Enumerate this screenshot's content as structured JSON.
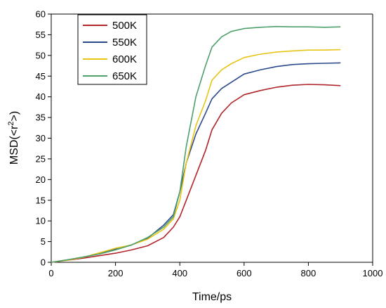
{
  "chart_data": {
    "type": "line",
    "title": "",
    "xlabel": "Time/ps",
    "ylabel_prefix": "MSD(<r",
    "ylabel_sup": "2",
    "ylabel_suffix": ">)",
    "xlim": [
      0,
      1000
    ],
    "ylim": [
      0,
      60
    ],
    "xticks": [
      0,
      200,
      400,
      600,
      800,
      1000
    ],
    "yticks": [
      0,
      5,
      10,
      15,
      20,
      25,
      30,
      35,
      40,
      45,
      50,
      55,
      60
    ],
    "grid": false,
    "legend_position": "top-left",
    "series": [
      {
        "name": "500K",
        "color": "#b0252a",
        "x": [
          0,
          50,
          100,
          150,
          200,
          250,
          300,
          350,
          380,
          400,
          420,
          450,
          480,
          500,
          530,
          560,
          600,
          650,
          700,
          750,
          800,
          850,
          900
        ],
        "y": [
          0,
          0.5,
          1.0,
          1.6,
          2.2,
          3.0,
          4.0,
          6.0,
          8.5,
          11.0,
          15.0,
          21.0,
          27.0,
          32.0,
          36.0,
          38.5,
          40.5,
          41.5,
          42.3,
          42.8,
          43.0,
          42.9,
          42.7
        ]
      },
      {
        "name": "550K",
        "color": "#2b4a8c",
        "x": [
          0,
          50,
          100,
          150,
          200,
          250,
          300,
          350,
          380,
          400,
          420,
          450,
          480,
          500,
          530,
          560,
          600,
          650,
          700,
          750,
          800,
          850,
          900
        ],
        "y": [
          0,
          0.6,
          1.2,
          2.2,
          3.2,
          4.2,
          5.8,
          9.0,
          11.5,
          17.0,
          24.0,
          31.0,
          36.0,
          39.5,
          42.0,
          43.5,
          45.5,
          46.5,
          47.3,
          47.8,
          48.0,
          48.1,
          48.2
        ]
      },
      {
        "name": "600K",
        "color": "#e8c414",
        "x": [
          0,
          50,
          100,
          150,
          200,
          250,
          300,
          350,
          380,
          400,
          420,
          450,
          480,
          500,
          530,
          560,
          600,
          650,
          700,
          750,
          800,
          850,
          900
        ],
        "y": [
          0,
          0.5,
          1.2,
          2.3,
          3.4,
          4.2,
          5.6,
          8.0,
          10.5,
          15.0,
          24.0,
          33.0,
          39.0,
          44.0,
          46.5,
          48.0,
          49.5,
          50.3,
          50.8,
          51.1,
          51.3,
          51.3,
          51.4
        ]
      },
      {
        "name": "650K",
        "color": "#4ea06a",
        "x": [
          0,
          50,
          100,
          150,
          200,
          250,
          300,
          350,
          380,
          400,
          420,
          450,
          480,
          500,
          530,
          560,
          600,
          650,
          700,
          750,
          800,
          850,
          900
        ],
        "y": [
          0,
          0.6,
          1.3,
          2.0,
          3.0,
          4.2,
          6.0,
          8.5,
          11.0,
          17.0,
          28.0,
          40.0,
          47.5,
          52.0,
          54.5,
          55.8,
          56.5,
          56.8,
          57.0,
          56.9,
          56.9,
          56.8,
          56.9
        ]
      }
    ]
  }
}
